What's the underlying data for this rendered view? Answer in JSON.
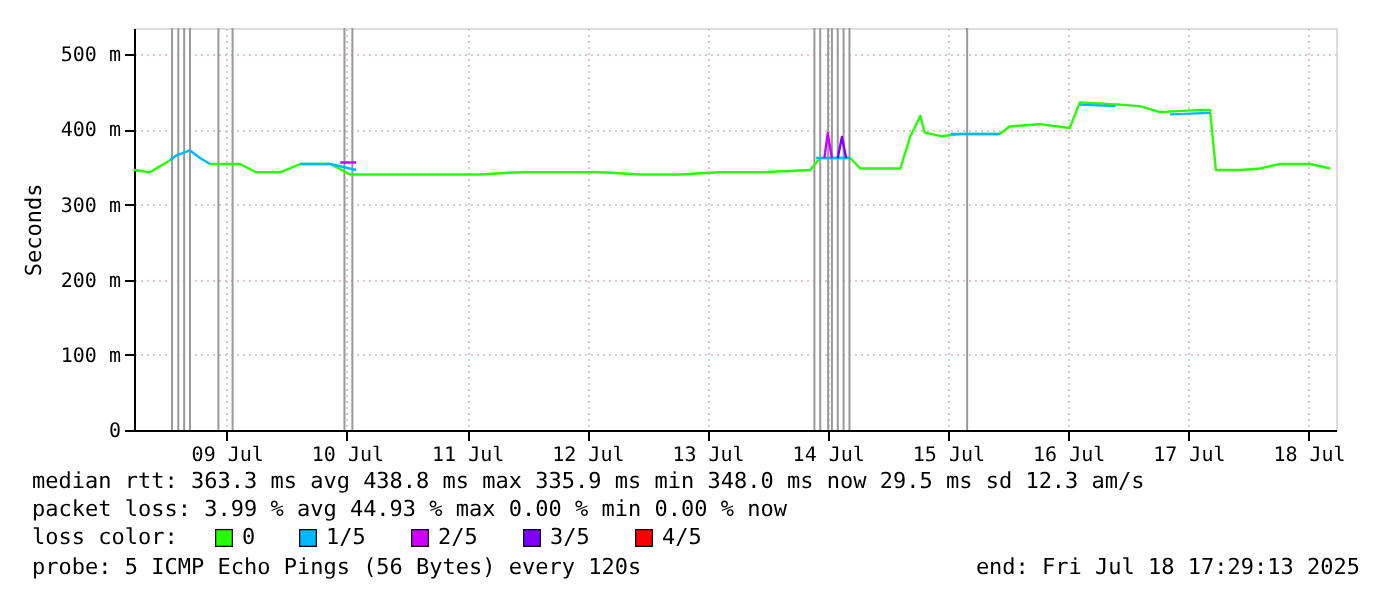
{
  "chart_data": {
    "type": "line",
    "ylabel": "Seconds",
    "xlim": [
      "2025-07-08T17:29",
      "2025-07-18T17:29"
    ],
    "xticks": [
      {
        "value": "2025-07-09T12:00",
        "label": "09 Jul"
      },
      {
        "value": "2025-07-10T12:00",
        "label": "10 Jul"
      },
      {
        "value": "2025-07-11T12:00",
        "label": "11 Jul"
      },
      {
        "value": "2025-07-12T12:00",
        "label": "12 Jul"
      },
      {
        "value": "2025-07-13T12:00",
        "label": "13 Jul"
      },
      {
        "value": "2025-07-14T12:00",
        "label": "14 Jul"
      },
      {
        "value": "2025-07-15T12:00",
        "label": "15 Jul"
      },
      {
        "value": "2025-07-16T12:00",
        "label": "16 Jul"
      },
      {
        "value": "2025-07-17T12:00",
        "label": "17 Jul"
      },
      {
        "value": "2025-07-18T12:00",
        "label": "18 Jul"
      }
    ],
    "ylim": [
      0,
      535
    ],
    "yticks": [
      0,
      {
        "value": 100,
        "label": "100 m"
      },
      {
        "value": 200,
        "label": "200 m"
      },
      {
        "value": 300,
        "label": "300 m"
      },
      {
        "value": 400,
        "label": "400 m"
      },
      {
        "value": 500,
        "label": "500 m"
      }
    ],
    "grid": true,
    "legend": "bottom",
    "legend_title": "loss color:",
    "line_style": "solid",
    "marker": "none",
    "series": [
      {
        "name": "0",
        "color": "#26ff00",
        "x": [
          "2025-07-08T17:29",
          "2025-07-08T20:40",
          "2025-07-08T22:40",
          "2025-07-09T00:40",
          "2025-07-09T03:30",
          "2025-07-09T05:00",
          "2025-07-09T08:40",
          "2025-07-09T14:40",
          "2025-07-09T17:50",
          "2025-07-09T22:40",
          "2025-07-10T02:40",
          "2025-07-10T08:40",
          "2025-07-10T12:40",
          "2025-07-10T18:40",
          "2025-07-11T04:30",
          "2025-07-11T14:30",
          "2025-07-11T22:30",
          "2025-07-12T06:40",
          "2025-07-12T14:40",
          "2025-07-12T22:40",
          "2025-07-13T06:30",
          "2025-07-13T14:30",
          "2025-07-13T22:30",
          "2025-07-14T08:30",
          "2025-07-14T10:30",
          "2025-07-14T16:30",
          "2025-07-14T18:30",
          "2025-07-15T02:30",
          "2025-07-15T04:30",
          "2025-07-15T06:30",
          "2025-07-15T07:20",
          "2025-07-15T10:30",
          "2025-07-15T14:30",
          "2025-07-15T22:20",
          "2025-07-16T00:20",
          "2025-07-16T06:20",
          "2025-07-16T12:20",
          "2025-07-16T14:20",
          "2025-07-16T22:20",
          "2025-07-17T02:20",
          "2025-07-17T06:20",
          "2025-07-17T14:20",
          "2025-07-17T16:20",
          "2025-07-17T17:30",
          "2025-07-17T22:20",
          "2025-07-18T02:20",
          "2025-07-18T06:20",
          "2025-07-18T12:20",
          "2025-07-18T16:20"
        ],
        "values": [
          346,
          343,
          351,
          359,
          null,
          null,
          354,
          354,
          343,
          343,
          354,
          354,
          340,
          340,
          340,
          340,
          343,
          343,
          343,
          340,
          340,
          343,
          343,
          346,
          362,
          362,
          348,
          348,
          391,
          418,
          396,
          391,
          394,
          394,
          404,
          407,
          402,
          436,
          433,
          431,
          423,
          426,
          426,
          346,
          346,
          348,
          354,
          354,
          348
        ]
      },
      {
        "name": "1/5",
        "color": "#00b8ff",
        "x": [
          "2025-07-09T00:40",
          "2025-07-09T01:50",
          "2025-07-09T04:40",
          "2025-07-09T06:40",
          "2025-07-09T08:40",
          "2025-07-09T16:40",
          "2025-07-10T02:40",
          "2025-07-10T08:40",
          "2025-07-10T13:50",
          "2025-07-12T14:40",
          "2025-07-14T09:40",
          "2025-07-14T16:30",
          "2025-07-15T02:30",
          "2025-07-15T12:30",
          "2025-07-15T22:20",
          "2025-07-16T06:20",
          "2025-07-16T14:20",
          "2025-07-16T21:30",
          "2025-07-17T02:20",
          "2025-07-17T08:20",
          "2025-07-17T16:20"
        ],
        "values": [
          359,
          365,
          372,
          362,
          354,
          null,
          354,
          354,
          346,
          null,
          362,
          362,
          null,
          394,
          394,
          null,
          433,
          431,
          null,
          420,
          422
        ]
      },
      {
        "name": "2/5",
        "color": "#ce00ff",
        "x": [
          "2025-07-10T10:40",
          "2025-07-10T13:50",
          "2025-07-12T14:40",
          "2025-07-14T11:20",
          "2025-07-14T12:00",
          "2025-07-14T12:50"
        ],
        "values": [
          356,
          356,
          null,
          362,
          395,
          362
        ]
      },
      {
        "name": "3/5",
        "color": "#7e00ff",
        "x": [
          "2025-07-14T14:00",
          "2025-07-14T14:50",
          "2025-07-14T15:40"
        ],
        "values": [
          362,
          390,
          362
        ]
      },
      {
        "name": "4/5",
        "color": "#ff0000"
      }
    ],
    "ref_lines": [
      {
        "axis": "x",
        "value": "2025-07-09T01:05",
        "color": "#999999"
      },
      {
        "axis": "x",
        "value": "2025-07-09T02:20",
        "color": "#999999"
      },
      {
        "axis": "x",
        "value": "2025-07-09T03:30",
        "color": "#999999"
      },
      {
        "axis": "x",
        "value": "2025-07-09T04:40",
        "color": "#999999"
      },
      {
        "axis": "x",
        "value": "2025-07-09T10:20",
        "color": "#999999"
      },
      {
        "axis": "x",
        "value": "2025-07-09T13:10",
        "color": "#999999"
      },
      {
        "axis": "x",
        "value": "2025-07-10T11:30",
        "color": "#999999"
      },
      {
        "axis": "x",
        "value": "2025-07-10T13:05",
        "color": "#999999"
      },
      {
        "axis": "x",
        "value": "2025-07-14T09:20",
        "color": "#999999"
      },
      {
        "axis": "x",
        "value": "2025-07-14T10:30",
        "color": "#999999"
      },
      {
        "axis": "x",
        "value": "2025-07-14T12:05",
        "color": "#999999"
      },
      {
        "axis": "x",
        "value": "2025-07-14T12:50",
        "color": "#999999"
      },
      {
        "axis": "x",
        "value": "2025-07-14T14:00",
        "color": "#999999"
      },
      {
        "axis": "x",
        "value": "2025-07-14T15:10",
        "color": "#999999"
      },
      {
        "axis": "x",
        "value": "2025-07-14T16:20",
        "color": "#999999"
      },
      {
        "axis": "x",
        "value": "2025-07-15T15:50",
        "color": "#999999"
      }
    ],
    "annotations": [
      "median rtt:  363.3 ms avg  438.8 ms max  335.9 ms min  348.0 ms now  29.5 ms sd  12.3   am/s",
      "packet loss: 3.99 % avg  44.93 % max  0.00 % min  0.00 % now",
      "probe:       5 ICMP Echo Pings (56 Bytes) every 120s",
      "end: Fri Jul 18 17:29:13 2025"
    ]
  }
}
